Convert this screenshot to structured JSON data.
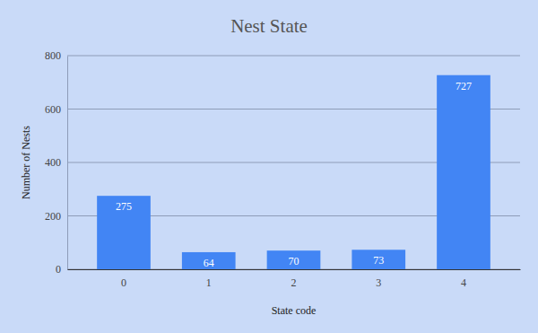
{
  "chart_data": {
    "type": "bar",
    "title": "Nest State",
    "xlabel": "State code",
    "ylabel": "Number of Nests",
    "categories": [
      "0",
      "1",
      "2",
      "3",
      "4"
    ],
    "values": [
      275,
      64,
      70,
      73,
      727
    ],
    "color": "#4285f4",
    "ylim": [
      0,
      800
    ],
    "yticks": [
      0,
      200,
      400,
      600,
      800
    ],
    "grid": true,
    "data_labels": true
  }
}
